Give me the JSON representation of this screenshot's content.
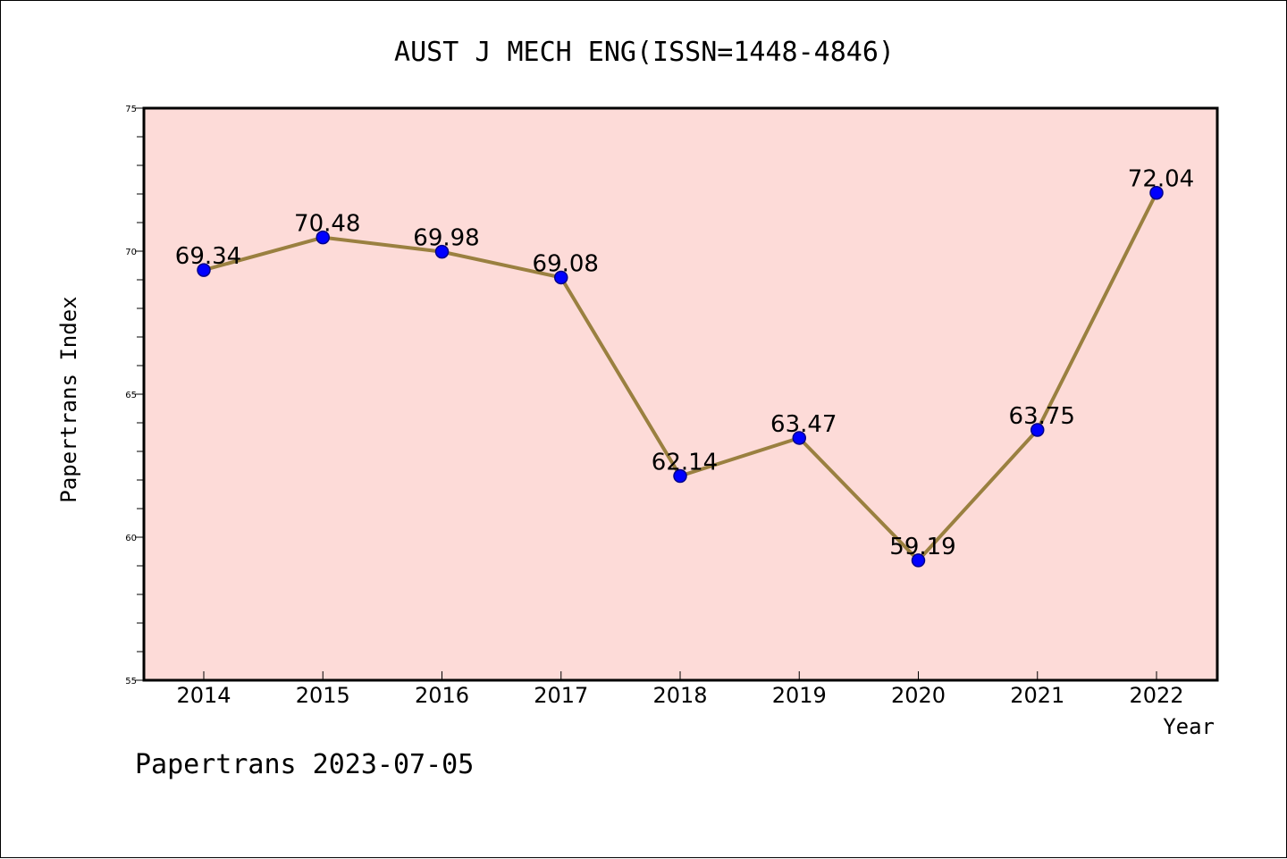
{
  "chart_data": {
    "type": "line",
    "title": "AUST J MECH ENG(ISSN=1448-4846)",
    "xlabel": "Year",
    "ylabel": "Papertrans Index",
    "categories": [
      "2014",
      "2015",
      "2016",
      "2017",
      "2018",
      "2019",
      "2020",
      "2021",
      "2022"
    ],
    "values": [
      69.34,
      70.48,
      69.98,
      69.08,
      62.14,
      63.47,
      59.19,
      63.75,
      72.04
    ],
    "data_labels": [
      "69.34",
      "70.48",
      "69.98",
      "69.08",
      "62.14",
      "63.47",
      "59.19",
      "63.75",
      "72.04"
    ],
    "ylim": [
      55,
      75
    ],
    "yticks": [
      55,
      60,
      65,
      70,
      75
    ],
    "grid": false,
    "legend": "none",
    "colors": {
      "plot_background": "#fddbd8",
      "line": "#9a8040",
      "marker": "#0000ff"
    }
  },
  "footer": {
    "text": "Papertrans 2023-07-05"
  }
}
